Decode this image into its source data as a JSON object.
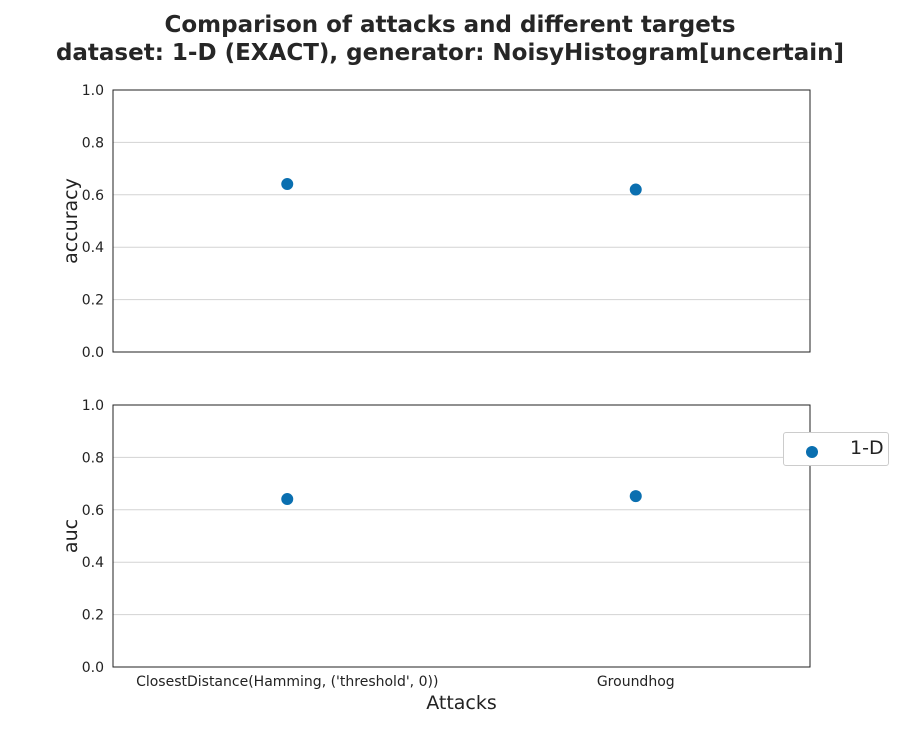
{
  "title_line1": "Comparison of attacks and different targets",
  "title_line2": "dataset: 1-D (EXACT), generator: NoisyHistogram[uncertain]",
  "colors": {
    "series": "#0a6fb0",
    "grid": "#d3d3d3",
    "axis": "#222222"
  },
  "chart_data": [
    {
      "type": "scatter",
      "categories": [
        "ClosestDistance(Hamming, ('threshold', 0))",
        "Groundhog"
      ],
      "series": [
        {
          "name": "1-D",
          "values": [
            0.641,
            0.62
          ]
        }
      ],
      "xlabel": "",
      "ylabel": "accuracy",
      "ylim": [
        0.0,
        1.0
      ],
      "yticks": [
        "0.0",
        "0.2",
        "0.4",
        "0.6",
        "0.8",
        "1.0"
      ],
      "grid": "horizontal"
    },
    {
      "type": "scatter",
      "categories": [
        "ClosestDistance(Hamming, ('threshold', 0))",
        "Groundhog"
      ],
      "series": [
        {
          "name": "1-D",
          "values": [
            0.641,
            0.652
          ]
        }
      ],
      "xlabel": "Attacks",
      "ylabel": "auc",
      "ylim": [
        0.0,
        1.0
      ],
      "yticks": [
        "0.0",
        "0.2",
        "0.4",
        "0.6",
        "0.8",
        "1.0"
      ],
      "grid": "horizontal"
    }
  ],
  "legend": {
    "position": "right",
    "items": [
      {
        "label": "1-D"
      }
    ]
  }
}
